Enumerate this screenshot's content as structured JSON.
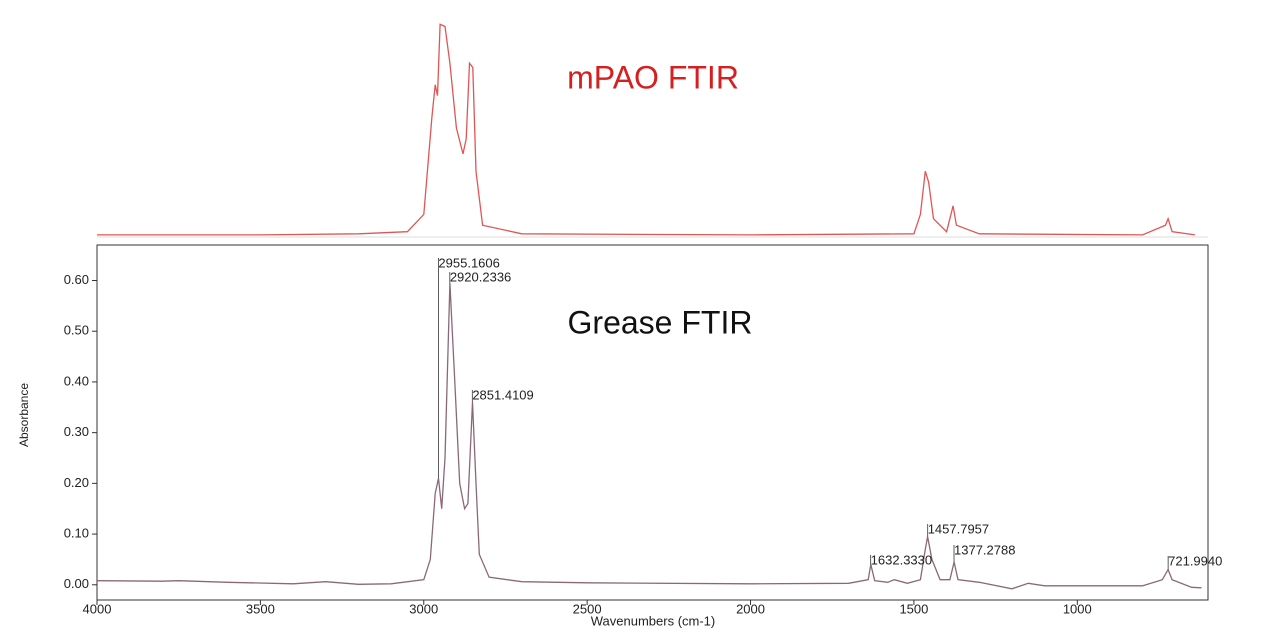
{
  "chart_data": [
    {
      "type": "line",
      "title": "mPAO FTIR",
      "x": [
        4000,
        3500,
        3200,
        3050,
        3000,
        2975,
        2965,
        2958,
        2950,
        2935,
        2920,
        2900,
        2880,
        2870,
        2860,
        2850,
        2840,
        2820,
        2700,
        2000,
        1500,
        1480,
        1465,
        1455,
        1440,
        1400,
        1380,
        1370,
        1300,
        800,
        730,
        722,
        710,
        640
      ],
      "series": [
        {
          "color": "#e05555",
          "values": [
            0.005,
            0.005,
            0.01,
            0.02,
            0.1,
            0.55,
            0.7,
            0.65,
            0.98,
            0.97,
            0.8,
            0.5,
            0.38,
            0.45,
            0.8,
            0.78,
            0.3,
            0.05,
            0.01,
            0.005,
            0.01,
            0.1,
            0.3,
            0.25,
            0.08,
            0.02,
            0.14,
            0.05,
            0.01,
            0.005,
            0.05,
            0.08,
            0.02,
            0.005
          ]
        }
      ],
      "xlim": [
        4000,
        600
      ],
      "ylim": [
        0,
        1
      ]
    },
    {
      "type": "line",
      "title": "Grease FTIR",
      "xlabel": "Wavenumbers (cm-1)",
      "ylabel": "Absorbance",
      "x": [
        4000,
        3800,
        3750,
        3600,
        3400,
        3300,
        3200,
        3100,
        3000,
        2980,
        2965,
        2955,
        2945,
        2935,
        2920,
        2905,
        2890,
        2875,
        2865,
        2851,
        2840,
        2830,
        2800,
        2700,
        2500,
        2000,
        1700,
        1640,
        1632,
        1620,
        1580,
        1560,
        1520,
        1480,
        1465,
        1458,
        1445,
        1420,
        1390,
        1377,
        1365,
        1300,
        1200,
        1150,
        1100,
        800,
        740,
        722,
        710,
        650,
        620
      ],
      "series": [
        {
          "color": "#8a6878",
          "values": [
            0.008,
            0.007,
            0.008,
            0.005,
            0.002,
            0.006,
            0.001,
            0.002,
            0.01,
            0.05,
            0.18,
            0.21,
            0.15,
            0.25,
            0.595,
            0.4,
            0.2,
            0.15,
            0.16,
            0.36,
            0.2,
            0.06,
            0.015,
            0.006,
            0.004,
            0.002,
            0.003,
            0.01,
            0.04,
            0.008,
            0.005,
            0.01,
            0.003,
            0.01,
            0.07,
            0.095,
            0.05,
            0.01,
            0.01,
            0.045,
            0.01,
            0.005,
            -0.008,
            0.003,
            -0.002,
            -0.002,
            0.01,
            0.03,
            0.01,
            -0.005,
            -0.006
          ]
        }
      ],
      "xlim": [
        4000,
        600
      ],
      "ylim": [
        -0.03,
        0.67
      ],
      "xticks": [
        4000,
        3500,
        3000,
        2500,
        2000,
        1500,
        1000
      ],
      "yticks": [
        {
          "value": 0,
          "label": "0.00"
        },
        {
          "value": 0.1,
          "label": "0.10"
        },
        {
          "value": 0.2,
          "label": "0.20"
        },
        {
          "value": 0.3,
          "label": "0.30"
        },
        {
          "value": 0.4,
          "label": "0.40"
        },
        {
          "value": 0.5,
          "label": "0.50"
        },
        {
          "value": 0.6,
          "label": "0.60"
        }
      ],
      "annotations": [
        {
          "label": "2955.1606",
          "x": 2955.1606,
          "y": 0.21
        },
        {
          "label": "2920.2336",
          "x": 2920.2336,
          "y": 0.595
        },
        {
          "label": "2851.4109",
          "x": 2851.4109,
          "y": 0.36
        },
        {
          "label": "1632.3330",
          "x": 1632.333,
          "y": 0.04
        },
        {
          "label": "1457.7957",
          "x": 1457.7957,
          "y": 0.095
        },
        {
          "label": "1377.2788",
          "x": 1377.2788,
          "y": 0.045
        },
        {
          "label": "721.9940",
          "x": 721.994,
          "y": 0.03
        }
      ]
    }
  ]
}
